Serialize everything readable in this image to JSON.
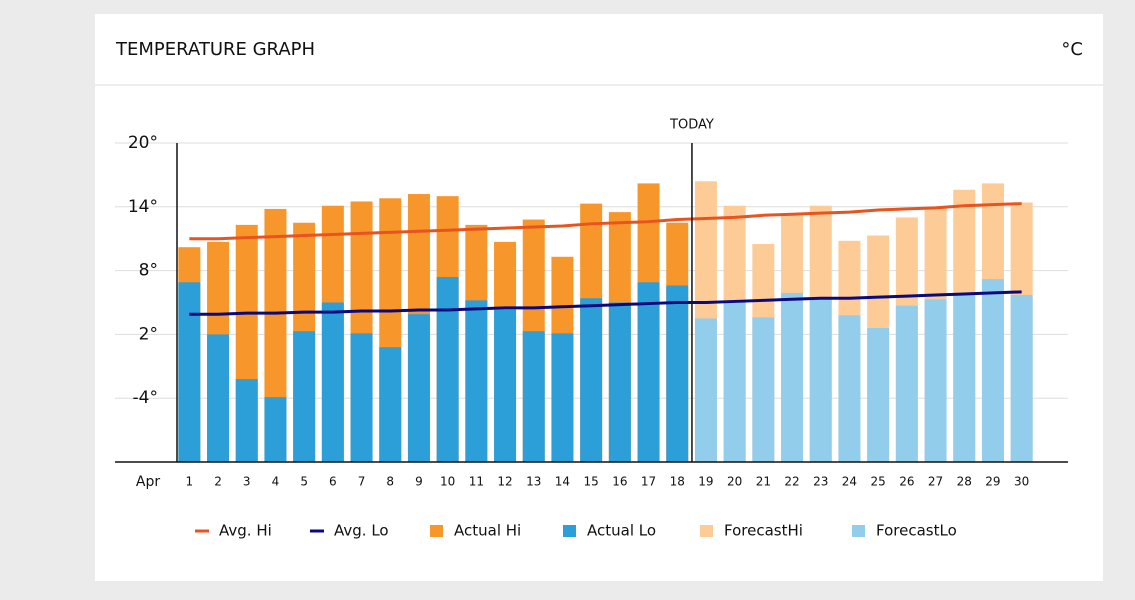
{
  "chart_data": {
    "type": "bar",
    "title": "TEMPERATURE GRAPH",
    "unit": "°C",
    "x_prefix": "Apr",
    "annotation": {
      "label": "TODAY",
      "at": "19"
    },
    "categories": [
      "1",
      "2",
      "3",
      "4",
      "5",
      "6",
      "7",
      "8",
      "9",
      "10",
      "11",
      "12",
      "13",
      "14",
      "15",
      "16",
      "17",
      "18",
      "19",
      "20",
      "21",
      "22",
      "23",
      "24",
      "25",
      "26",
      "27",
      "28",
      "29",
      "30"
    ],
    "ylim": [
      -10,
      20
    ],
    "yticks": [
      {
        "value": 20,
        "label": "20°"
      },
      {
        "value": 14,
        "label": "14°"
      },
      {
        "value": 8,
        "label": "8°"
      },
      {
        "value": 2,
        "label": "2°"
      },
      {
        "value": -4,
        "label": "-4°"
      }
    ],
    "grid": true,
    "series": [
      {
        "name": "Avg. Hi",
        "type": "line",
        "color": "#e8541f",
        "values": [
          11.0,
          11.0,
          11.1,
          11.2,
          11.3,
          11.4,
          11.5,
          11.6,
          11.7,
          11.8,
          11.9,
          12.0,
          12.1,
          12.2,
          12.4,
          12.5,
          12.6,
          12.8,
          12.9,
          13.0,
          13.2,
          13.3,
          13.4,
          13.5,
          13.7,
          13.8,
          13.9,
          14.1,
          14.2,
          14.3
        ]
      },
      {
        "name": "Avg. Lo",
        "type": "line",
        "color": "#0a0a7e",
        "values": [
          3.9,
          3.9,
          4.0,
          4.0,
          4.1,
          4.1,
          4.2,
          4.2,
          4.3,
          4.3,
          4.4,
          4.5,
          4.5,
          4.6,
          4.7,
          4.8,
          4.9,
          5.0,
          5.0,
          5.1,
          5.2,
          5.3,
          5.4,
          5.4,
          5.5,
          5.6,
          5.7,
          5.8,
          5.9,
          6.0
        ]
      },
      {
        "name": "Actual Hi",
        "type": "bar",
        "color": "#f7962a",
        "values": [
          10.2,
          10.7,
          12.3,
          13.8,
          12.5,
          14.1,
          14.5,
          14.8,
          15.2,
          15.0,
          12.3,
          10.7,
          12.8,
          9.3,
          14.3,
          13.5,
          16.2,
          12.5,
          null,
          null,
          null,
          null,
          null,
          null,
          null,
          null,
          null,
          null,
          null,
          null
        ]
      },
      {
        "name": "Actual Lo",
        "type": "bar",
        "color": "#2d9fd8",
        "values": [
          6.9,
          2.0,
          -2.2,
          -3.9,
          2.3,
          5.0,
          2.1,
          0.8,
          3.9,
          7.4,
          5.2,
          4.3,
          2.3,
          2.1,
          5.4,
          5.0,
          6.9,
          6.6,
          null,
          null,
          null,
          null,
          null,
          null,
          null,
          null,
          null,
          null,
          null,
          null
        ]
      },
      {
        "name": "ForecastHi",
        "type": "bar",
        "color": "#fccb96",
        "values": [
          null,
          null,
          null,
          null,
          null,
          null,
          null,
          null,
          null,
          null,
          null,
          null,
          null,
          null,
          null,
          null,
          null,
          null,
          16.4,
          14.1,
          10.5,
          13.3,
          14.1,
          10.8,
          11.3,
          13.0,
          14.0,
          15.6,
          16.2,
          14.4
        ]
      },
      {
        "name": "ForecastLo",
        "type": "bar",
        "color": "#93cdec",
        "values": [
          null,
          null,
          null,
          null,
          null,
          null,
          null,
          null,
          null,
          null,
          null,
          null,
          null,
          null,
          null,
          null,
          null,
          null,
          3.5,
          5.0,
          3.6,
          5.9,
          5.4,
          3.8,
          2.6,
          4.7,
          5.3,
          5.7,
          7.2,
          5.7
        ]
      }
    ]
  }
}
